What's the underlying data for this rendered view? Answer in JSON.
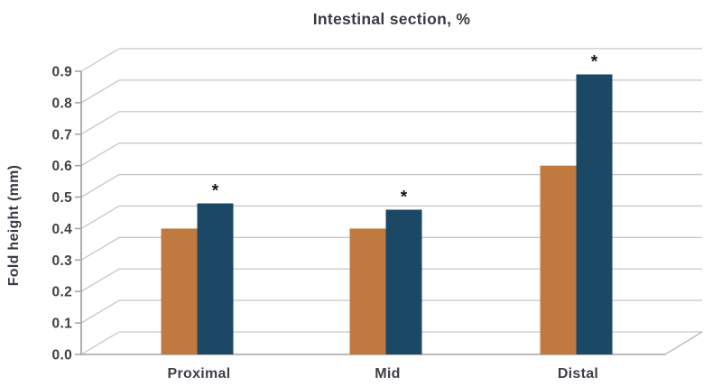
{
  "chart_data": {
    "type": "bar",
    "title": "Intestinal section, %",
    "xlabel": "",
    "ylabel": "Fold height (mm)",
    "categories": [
      "Proximal",
      "Mid",
      "Distal"
    ],
    "series": [
      {
        "id": "orange-series",
        "color": "#c0793f",
        "values": [
          0.4,
          0.4,
          0.6
        ],
        "significance": [
          "",
          "",
          ""
        ]
      },
      {
        "id": "navy-series",
        "color": "#1b4965",
        "values": [
          0.48,
          0.46,
          0.89
        ],
        "significance": [
          "*",
          "*",
          "*"
        ]
      }
    ],
    "ylim": [
      0,
      0.9
    ],
    "ytick_labels": [
      "0.0",
      "0.1",
      "0.2",
      "0.3",
      "0.4",
      "0.5",
      "0.6",
      "0.7",
      "0.8",
      "0.9"
    ],
    "grid": "horizontal-with-3d-depth",
    "legend": "none",
    "significance_marker": "*"
  },
  "colors": {
    "bar_orange": "#c0793f",
    "bar_navy": "#1b4965",
    "gridline": "#c7c7c7",
    "axis_line": "#a6a6a6",
    "floor_edge": "#b9b9b9",
    "label_text": "#3f3f48",
    "title_text": "#3a3a44",
    "asterisk": "#141414",
    "background": "#ffffff"
  }
}
